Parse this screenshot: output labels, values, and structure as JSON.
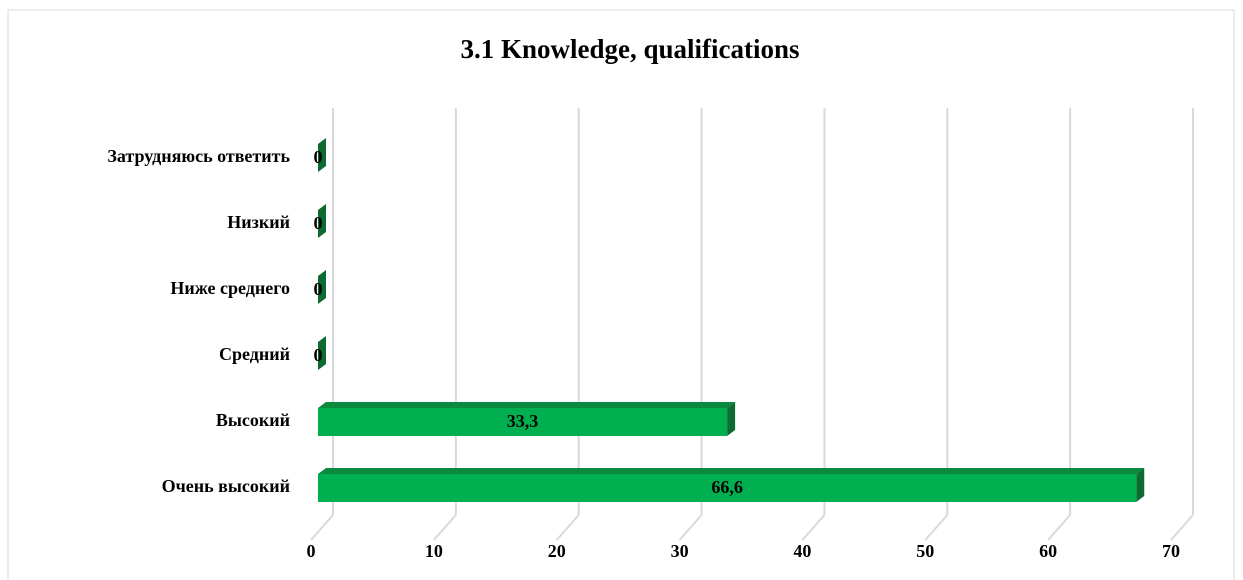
{
  "chart_data": {
    "type": "bar",
    "orientation": "horizontal",
    "title": "3.1 Knowledge, qualifications",
    "categories": [
      "Затрудняюсь ответить",
      "Низкий",
      "Ниже среднего",
      "Средний",
      "Высокий",
      "Очень высокий"
    ],
    "values": [
      0,
      0,
      0,
      0,
      33.3,
      66.6
    ],
    "value_labels": [
      "0",
      "0",
      "0",
      "0",
      "33,3",
      "66,6"
    ],
    "color": "#00b050",
    "xlim": [
      0,
      70
    ],
    "xticks": [
      0,
      10,
      20,
      30,
      40,
      50,
      60,
      70
    ],
    "grid": true
  }
}
